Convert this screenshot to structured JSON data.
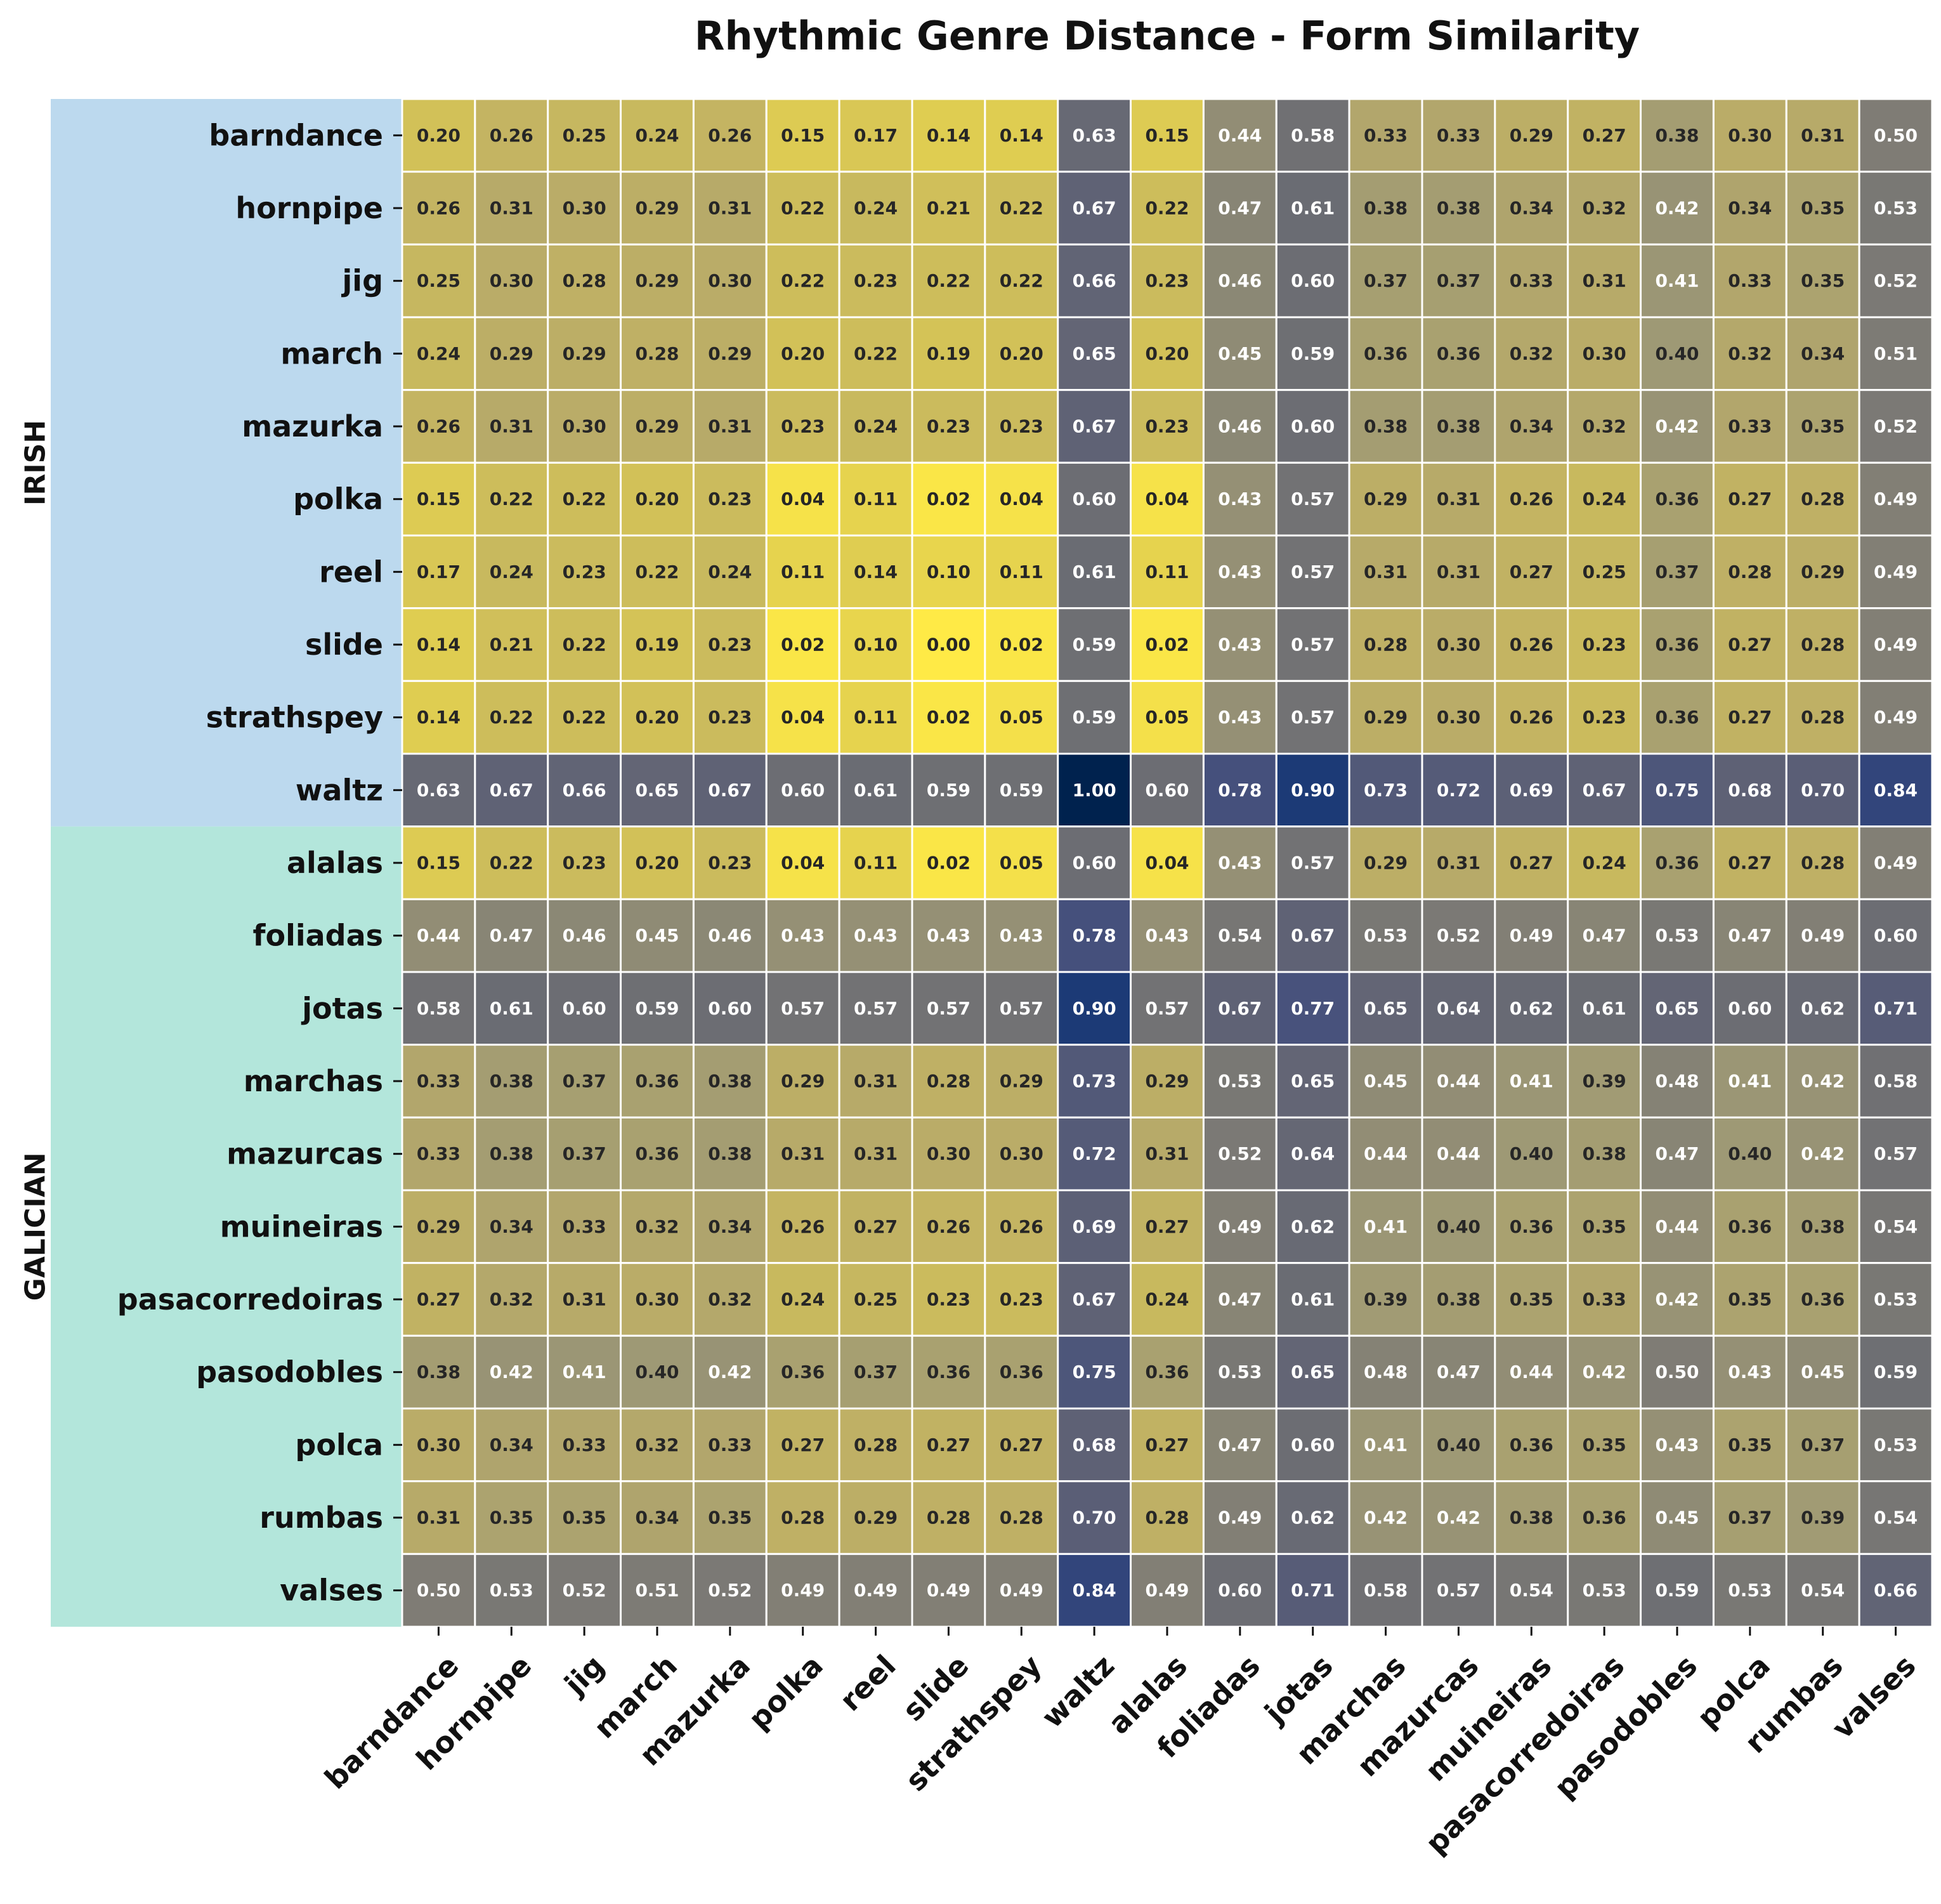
{
  "chart_data": {
    "type": "heatmap",
    "title": "Rhythmic Genre Distance - Form Similarity",
    "xlabel": "",
    "ylabel": "",
    "colormap": "cividis_r",
    "value_range": [
      0,
      1
    ],
    "grid": false,
    "colorbar": false,
    "groups": [
      {
        "name": "IRISH",
        "color": "#bcd9ee"
      },
      {
        "name": "GALICIAN",
        "color": "#b3e6db"
      }
    ],
    "row_groups": [
      "IRISH",
      "IRISH",
      "IRISH",
      "IRISH",
      "IRISH",
      "IRISH",
      "IRISH",
      "IRISH",
      "IRISH",
      "IRISH",
      "GALICIAN",
      "GALICIAN",
      "GALICIAN",
      "GALICIAN",
      "GALICIAN",
      "GALICIAN",
      "GALICIAN",
      "GALICIAN",
      "GALICIAN",
      "GALICIAN",
      "GALICIAN"
    ],
    "rows": [
      "barndance",
      "hornpipe",
      "jig",
      "march",
      "mazurka",
      "polka",
      "reel",
      "slide",
      "strathspey",
      "waltz",
      "alalas",
      "foliadas",
      "jotas",
      "marchas",
      "mazurcas",
      "muineiras",
      "pasacorredoiras",
      "pasodobles",
      "polca",
      "rumbas",
      "valses"
    ],
    "columns": [
      "barndance",
      "hornpipe",
      "jig",
      "march",
      "mazurka",
      "polka",
      "reel",
      "slide",
      "strathspey",
      "waltz",
      "alalas",
      "foliadas",
      "jotas",
      "marchas",
      "mazurcas",
      "muineiras",
      "pasacorredoiras",
      "pasodobles",
      "polca",
      "rumbas",
      "valses"
    ],
    "values": [
      [
        0.2,
        0.26,
        0.25,
        0.24,
        0.26,
        0.15,
        0.17,
        0.14,
        0.14,
        0.63,
        0.15,
        0.44,
        0.58,
        0.33,
        0.33,
        0.29,
        0.27,
        0.38,
        0.3,
        0.31,
        0.5
      ],
      [
        0.26,
        0.31,
        0.3,
        0.29,
        0.31,
        0.22,
        0.24,
        0.21,
        0.22,
        0.67,
        0.22,
        0.47,
        0.61,
        0.38,
        0.38,
        0.34,
        0.32,
        0.42,
        0.34,
        0.35,
        0.53
      ],
      [
        0.25,
        0.3,
        0.28,
        0.29,
        0.3,
        0.22,
        0.23,
        0.22,
        0.22,
        0.66,
        0.23,
        0.46,
        0.6,
        0.37,
        0.37,
        0.33,
        0.31,
        0.41,
        0.33,
        0.35,
        0.52
      ],
      [
        0.24,
        0.29,
        0.29,
        0.28,
        0.29,
        0.2,
        0.22,
        0.19,
        0.2,
        0.65,
        0.2,
        0.45,
        0.59,
        0.36,
        0.36,
        0.32,
        0.3,
        0.4,
        0.32,
        0.34,
        0.51
      ],
      [
        0.26,
        0.31,
        0.3,
        0.29,
        0.31,
        0.23,
        0.24,
        0.23,
        0.23,
        0.67,
        0.23,
        0.46,
        0.6,
        0.38,
        0.38,
        0.34,
        0.32,
        0.42,
        0.33,
        0.35,
        0.52
      ],
      [
        0.15,
        0.22,
        0.22,
        0.2,
        0.23,
        0.04,
        0.11,
        0.02,
        0.04,
        0.6,
        0.04,
        0.43,
        0.57,
        0.29,
        0.31,
        0.26,
        0.24,
        0.36,
        0.27,
        0.28,
        0.49
      ],
      [
        0.17,
        0.24,
        0.23,
        0.22,
        0.24,
        0.11,
        0.14,
        0.1,
        0.11,
        0.61,
        0.11,
        0.43,
        0.57,
        0.31,
        0.31,
        0.27,
        0.25,
        0.37,
        0.28,
        0.29,
        0.49
      ],
      [
        0.14,
        0.21,
        0.22,
        0.19,
        0.23,
        0.02,
        0.1,
        0.0,
        0.02,
        0.59,
        0.02,
        0.43,
        0.57,
        0.28,
        0.3,
        0.26,
        0.23,
        0.36,
        0.27,
        0.28,
        0.49
      ],
      [
        0.14,
        0.22,
        0.22,
        0.2,
        0.23,
        0.04,
        0.11,
        0.02,
        0.05,
        0.59,
        0.05,
        0.43,
        0.57,
        0.29,
        0.3,
        0.26,
        0.23,
        0.36,
        0.27,
        0.28,
        0.49
      ],
      [
        0.63,
        0.67,
        0.66,
        0.65,
        0.67,
        0.6,
        0.61,
        0.59,
        0.59,
        1.0,
        0.6,
        0.78,
        0.9,
        0.73,
        0.72,
        0.69,
        0.67,
        0.75,
        0.68,
        0.7,
        0.84
      ],
      [
        0.15,
        0.22,
        0.23,
        0.2,
        0.23,
        0.04,
        0.11,
        0.02,
        0.05,
        0.6,
        0.04,
        0.43,
        0.57,
        0.29,
        0.31,
        0.27,
        0.24,
        0.36,
        0.27,
        0.28,
        0.49
      ],
      [
        0.44,
        0.47,
        0.46,
        0.45,
        0.46,
        0.43,
        0.43,
        0.43,
        0.43,
        0.78,
        0.43,
        0.54,
        0.67,
        0.53,
        0.52,
        0.49,
        0.47,
        0.53,
        0.47,
        0.49,
        0.6
      ],
      [
        0.58,
        0.61,
        0.6,
        0.59,
        0.6,
        0.57,
        0.57,
        0.57,
        0.57,
        0.9,
        0.57,
        0.67,
        0.77,
        0.65,
        0.64,
        0.62,
        0.61,
        0.65,
        0.6,
        0.62,
        0.71
      ],
      [
        0.33,
        0.38,
        0.37,
        0.36,
        0.38,
        0.29,
        0.31,
        0.28,
        0.29,
        0.73,
        0.29,
        0.53,
        0.65,
        0.45,
        0.44,
        0.41,
        0.39,
        0.48,
        0.41,
        0.42,
        0.58
      ],
      [
        0.33,
        0.38,
        0.37,
        0.36,
        0.38,
        0.31,
        0.31,
        0.3,
        0.3,
        0.72,
        0.31,
        0.52,
        0.64,
        0.44,
        0.44,
        0.4,
        0.38,
        0.47,
        0.4,
        0.42,
        0.57
      ],
      [
        0.29,
        0.34,
        0.33,
        0.32,
        0.34,
        0.26,
        0.27,
        0.26,
        0.26,
        0.69,
        0.27,
        0.49,
        0.62,
        0.41,
        0.4,
        0.36,
        0.35,
        0.44,
        0.36,
        0.38,
        0.54
      ],
      [
        0.27,
        0.32,
        0.31,
        0.3,
        0.32,
        0.24,
        0.25,
        0.23,
        0.23,
        0.67,
        0.24,
        0.47,
        0.61,
        0.39,
        0.38,
        0.35,
        0.33,
        0.42,
        0.35,
        0.36,
        0.53
      ],
      [
        0.38,
        0.42,
        0.41,
        0.4,
        0.42,
        0.36,
        0.37,
        0.36,
        0.36,
        0.75,
        0.36,
        0.53,
        0.65,
        0.48,
        0.47,
        0.44,
        0.42,
        0.5,
        0.43,
        0.45,
        0.59
      ],
      [
        0.3,
        0.34,
        0.33,
        0.32,
        0.33,
        0.27,
        0.28,
        0.27,
        0.27,
        0.68,
        0.27,
        0.47,
        0.6,
        0.41,
        0.4,
        0.36,
        0.35,
        0.43,
        0.35,
        0.37,
        0.53
      ],
      [
        0.31,
        0.35,
        0.35,
        0.34,
        0.35,
        0.28,
        0.29,
        0.28,
        0.28,
        0.7,
        0.28,
        0.49,
        0.62,
        0.42,
        0.42,
        0.38,
        0.36,
        0.45,
        0.37,
        0.39,
        0.54
      ],
      [
        0.5,
        0.53,
        0.52,
        0.51,
        0.52,
        0.49,
        0.49,
        0.49,
        0.49,
        0.84,
        0.49,
        0.6,
        0.71,
        0.58,
        0.57,
        0.54,
        0.53,
        0.59,
        0.53,
        0.54,
        0.66
      ]
    ]
  }
}
